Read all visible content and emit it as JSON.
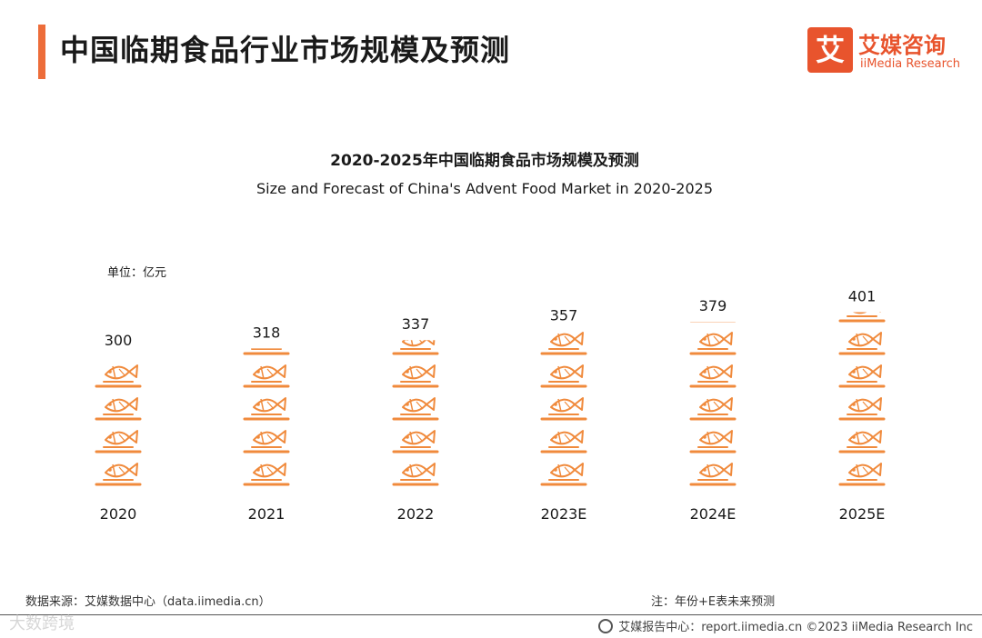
{
  "header": {
    "title": "中国临期食品行业市场规模及预测",
    "logo_mark": "艾",
    "logo_cn": "艾媒咨询",
    "logo_en": "iiMedia Research"
  },
  "chart_data": {
    "type": "bar",
    "style": "pictogram",
    "title": "2020-2025年中国临期食品市场规模及预测",
    "subtitle": "Size and Forecast of China's Advent Food Market in 2020-2025",
    "unit": "单位：亿元",
    "categories": [
      "2020",
      "2021",
      "2022",
      "2023E",
      "2024E",
      "2025E"
    ],
    "values": [
      300,
      318,
      337,
      357,
      379,
      401
    ],
    "color": "#f08a3c",
    "icon": "fish-on-plate-icon"
  },
  "footer": {
    "source": "数据来源：艾媒数据中心（data.iimedia.cn）",
    "note": "注：年份+E表未来预测",
    "credit": "艾媒报告中心：report.iimedia.cn  ©2023  iiMedia Research  Inc",
    "watermark": "大数跨境"
  }
}
